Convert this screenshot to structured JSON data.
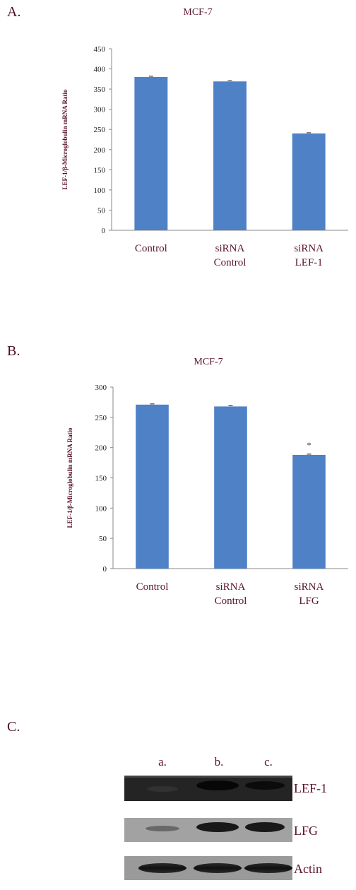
{
  "panels": [
    {
      "label": "A."
    },
    {
      "label": "B."
    },
    {
      "label": "C."
    }
  ],
  "chart_data": [
    {
      "type": "bar",
      "title": "MCF-7",
      "ylabel": "LEF-1/β-Microglobulin mRNA Ratio",
      "xlabel": "",
      "categories": [
        [
          "Control"
        ],
        [
          "siRNA",
          "Control"
        ],
        [
          "siRNA",
          "LEF-1"
        ]
      ],
      "values": [
        380,
        369,
        240
      ],
      "ylim": [
        0,
        450
      ],
      "yticks": [
        0,
        50,
        100,
        150,
        200,
        250,
        300,
        350,
        400,
        450
      ],
      "annotations": [
        "",
        "",
        ""
      ],
      "bar_color": "#4f81c7",
      "grid": false
    },
    {
      "type": "bar",
      "title": "MCF-7",
      "ylabel": "LEF-1/β-Microglobulin mRNA Ratio",
      "xlabel": "",
      "categories": [
        [
          "Control"
        ],
        [
          "siRNA",
          "Control"
        ],
        [
          "siRNA",
          "LFG"
        ]
      ],
      "values": [
        271,
        268,
        188
      ],
      "ylim": [
        0,
        300
      ],
      "yticks": [
        0,
        50,
        100,
        150,
        200,
        250,
        300
      ],
      "annotations": [
        "",
        "",
        "*"
      ],
      "bar_color": "#4f81c7",
      "grid": false
    }
  ],
  "blot": {
    "lanes": [
      "a.",
      "b.",
      "c."
    ],
    "rows": [
      "LEF-1",
      "LFG",
      "Actin"
    ]
  },
  "colors": {
    "label_text": "#5a1428",
    "tick_text": "#222222"
  }
}
